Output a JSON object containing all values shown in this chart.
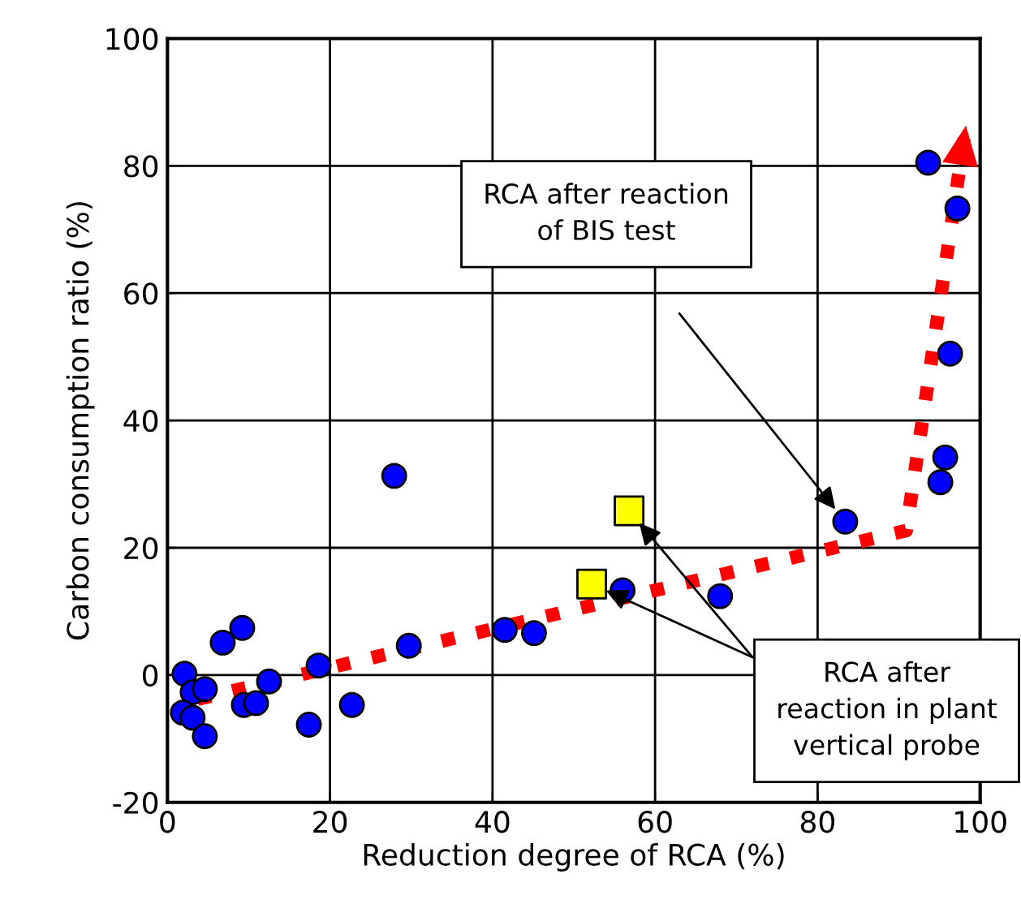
{
  "chart_data": {
    "type": "scatter",
    "xlabel": "Reduction degree of RCA (%)",
    "ylabel": "Carbon consumption ratio (%)",
    "xlim": [
      0,
      100
    ],
    "ylim": [
      -20,
      100
    ],
    "xticks": [
      0,
      20,
      40,
      60,
      80,
      100
    ],
    "yticks": [
      -20,
      0,
      20,
      40,
      60,
      80,
      100
    ],
    "grid": true,
    "legend": false,
    "series": [
      {
        "marker": "circle",
        "color": "#0000ff",
        "x": [
          27.9,
          2.1,
          3.1,
          4.6,
          1.9,
          3.1,
          4.6,
          6.8,
          9.2,
          9.4,
          10.9,
          12.5,
          18.6,
          17.4,
          22.7,
          29.7,
          41.5,
          45.1,
          56.0,
          68.0,
          83.4,
          93.6,
          97.2,
          96.3,
          95.7,
          95.1
        ],
        "values": [
          31.3,
          0.2,
          -2.7,
          -2.2,
          -5.9,
          -6.7,
          -9.6,
          5.1,
          7.4,
          -4.7,
          -4.4,
          -1.0,
          1.5,
          -7.8,
          -4.7,
          4.6,
          7.1,
          6.6,
          13.3,
          12.4,
          24.1,
          80.5,
          73.3,
          50.5,
          34.2,
          30.3
        ]
      },
      {
        "marker": "square",
        "color": "#ffff00",
        "x": [
          56.8,
          52.2
        ],
        "values": [
          25.8,
          14.3
        ]
      },
      {
        "type": "line",
        "line_style": "dotted",
        "color": "#ff0000",
        "x": [
          3.7,
          90.9,
          98.2
        ],
        "values": [
          -3.8,
          22.7,
          85.9
        ]
      }
    ],
    "annotations": [
      "RCA after reaction\nof BIS test",
      "RCA after\nreaction in plant\nvertical probe"
    ]
  }
}
